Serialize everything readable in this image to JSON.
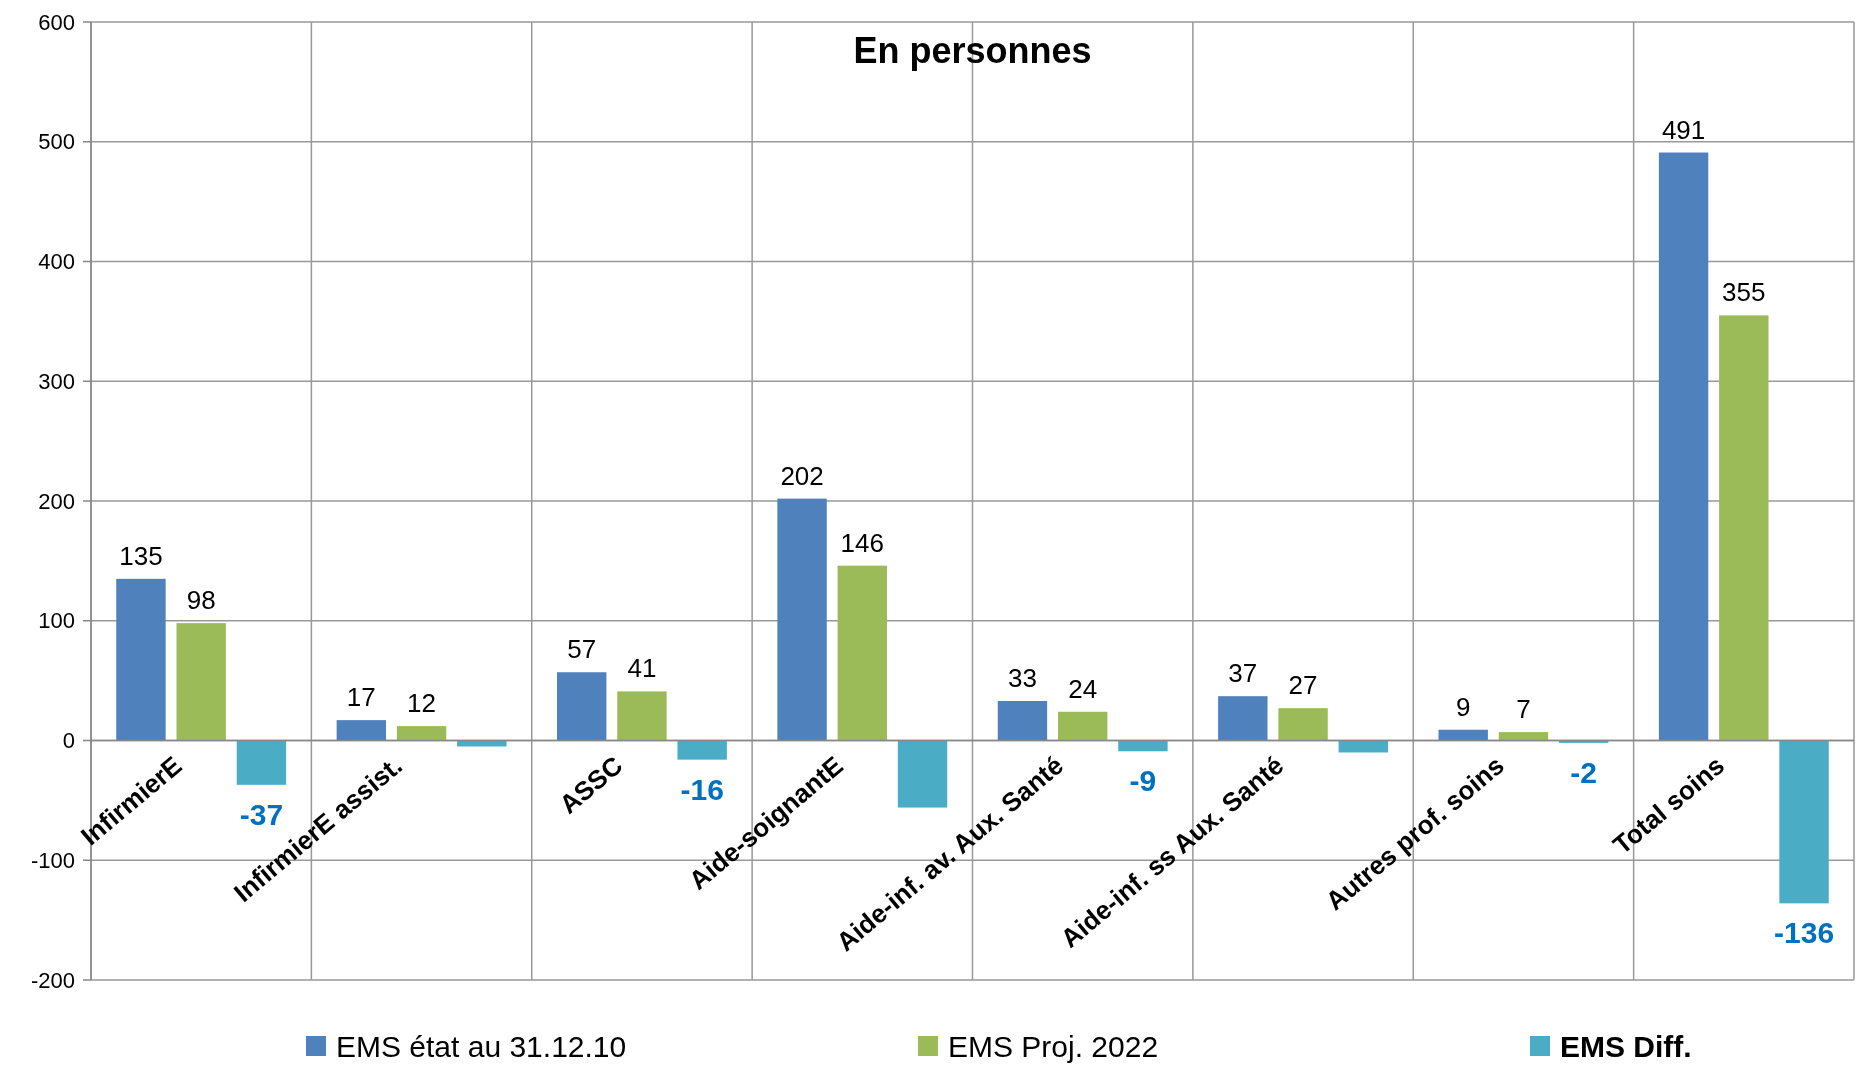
{
  "chart_data": {
    "type": "bar",
    "title": "En personnes",
    "categories": [
      "InfirmierE",
      "InfirmierE assist.",
      "ASSC",
      "Aide-soignantE",
      "Aide-inf. av. Aux. Santé",
      "Aide-inf. ss Aux. Santé",
      "Autres prof. soins",
      "Total soins"
    ],
    "series": [
      {
        "name": "EMS état au 31.12.10",
        "color": "#4f81bd",
        "values": [
          135,
          17,
          57,
          202,
          33,
          37,
          9,
          491
        ],
        "value_labels": [
          "135",
          "17",
          "57",
          "202",
          "33",
          "37",
          "9",
          "491"
        ]
      },
      {
        "name": "EMS Proj. 2022",
        "color": "#9bbb59",
        "values": [
          98,
          12,
          41,
          146,
          24,
          27,
          7,
          355
        ],
        "value_labels": [
          "98",
          "12",
          "41",
          "146",
          "24",
          "27",
          "7",
          "355"
        ]
      },
      {
        "name": "EMS Diff.",
        "color": "#4bacc6",
        "values": [
          -37,
          -5,
          -16,
          -56,
          -9,
          -10,
          -2,
          -136
        ],
        "value_labels": [
          "-37",
          null,
          "-16",
          null,
          "-9",
          null,
          "-2",
          "-136"
        ]
      }
    ],
    "ylim": [
      -200,
      600
    ],
    "yticks": [
      -200,
      -100,
      0,
      100,
      200,
      300,
      400,
      500,
      600
    ],
    "grid": true,
    "legend": "bottom"
  }
}
